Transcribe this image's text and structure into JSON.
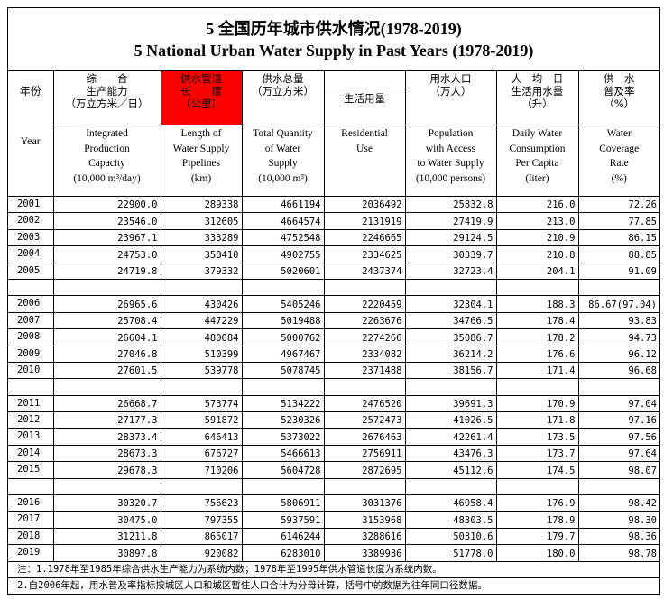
{
  "title": {
    "cn": "5 全国历年城市供水情况(1978-2019)",
    "en": "5 National Urban Water Supply in Past Years (1978-2019)"
  },
  "header": {
    "year_cn": "年份",
    "year_en": "Year",
    "columns": [
      {
        "cn": [
          "综　　合",
          "生产能力",
          "（万立方米／日）"
        ],
        "en": [
          "Integrated",
          "Production",
          "Capacity",
          "(10,000 m³/day)"
        ]
      },
      {
        "cn": [
          "供水管道",
          "长　　度",
          "（公里）"
        ],
        "en": [
          "Length of",
          "Water Supply",
          "Pipelines",
          "(km)"
        ],
        "highlight": "#ff0000"
      },
      {
        "cn": [
          "供水总量",
          "（万立方米）"
        ],
        "en": [
          "Total Quantity",
          "of Water",
          "Supply",
          "(10,000 m³)"
        ]
      },
      {
        "cn": [
          "",
          "生活用量"
        ],
        "en": [
          "Residential",
          "Use"
        ]
      },
      {
        "cn": [
          "用水人口",
          "（万人）"
        ],
        "en": [
          "Population",
          "with Access",
          "to Water Supply",
          "(10,000 persons)"
        ]
      },
      {
        "cn": [
          "人　均　日",
          "生活用水量",
          "（升）"
        ],
        "en": [
          "Daily Water",
          "Consumption",
          "Per Capita",
          "(liter)"
        ]
      },
      {
        "cn": [
          "供　水",
          "普及率",
          "（%）"
        ],
        "en": [
          "Water",
          "Coverage",
          "Rate",
          "(%)"
        ]
      }
    ]
  },
  "rows": [
    [
      "2001",
      "22900.0",
      "289338",
      "4661194",
      "2036492",
      "25832.8",
      "216.0",
      "72.26"
    ],
    [
      "2002",
      "23546.0",
      "312605",
      "4664574",
      "2131919",
      "27419.9",
      "213.0",
      "77.85"
    ],
    [
      "2003",
      "23967.1",
      "333289",
      "4752548",
      "2246665",
      "29124.5",
      "210.9",
      "86.15"
    ],
    [
      "2004",
      "24753.0",
      "358410",
      "4902755",
      "2334625",
      "30339.7",
      "210.8",
      "88.85"
    ],
    [
      "2005",
      "24719.8",
      "379332",
      "5020601",
      "2437374",
      "32723.4",
      "204.1",
      "91.09"
    ],
    null,
    [
      "2006",
      "26965.6",
      "430426",
      "5405246",
      "2220459",
      "32304.1",
      "188.3",
      "86.67(97.04)"
    ],
    [
      "2007",
      "25708.4",
      "447229",
      "5019488",
      "2263676",
      "34766.5",
      "178.4",
      "93.83"
    ],
    [
      "2008",
      "26604.1",
      "480084",
      "5000762",
      "2274266",
      "35086.7",
      "178.2",
      "94.73"
    ],
    [
      "2009",
      "27046.8",
      "510399",
      "4967467",
      "2334082",
      "36214.2",
      "176.6",
      "96.12"
    ],
    [
      "2010",
      "27601.5",
      "539778",
      "5078745",
      "2371488",
      "38156.7",
      "171.4",
      "96.68"
    ],
    null,
    [
      "2011",
      "26668.7",
      "573774",
      "5134222",
      "2476520",
      "39691.3",
      "170.9",
      "97.04"
    ],
    [
      "2012",
      "27177.3",
      "591872",
      "5230326",
      "2572473",
      "41026.5",
      "171.8",
      "97.16"
    ],
    [
      "2013",
      "28373.4",
      "646413",
      "5373022",
      "2676463",
      "42261.4",
      "173.5",
      "97.56"
    ],
    [
      "2014",
      "28673.3",
      "676727",
      "5466613",
      "2756911",
      "43476.3",
      "173.7",
      "97.64"
    ],
    [
      "2015",
      "29678.3",
      "710206",
      "5604728",
      "2872695",
      "45112.6",
      "174.5",
      "98.07"
    ],
    null,
    [
      "2016",
      "30320.7",
      "756623",
      "5806911",
      "3031376",
      "46958.4",
      "176.9",
      "98.42"
    ],
    [
      "2017",
      "30475.0",
      "797355",
      "5937591",
      "3153968",
      "48303.5",
      "178.9",
      "98.30"
    ],
    [
      "2018",
      "31211.8",
      "865017",
      "6146244",
      "3288616",
      "50310.6",
      "179.7",
      "98.36"
    ],
    [
      "2019",
      "30897.8",
      "920082",
      "6283010",
      "3389936",
      "51778.0",
      "180.0",
      "98.78"
    ]
  ],
  "notes": [
    "注：1.1978年至1985年综合供水生产能力为系统内数；1978年至1995年供水管道长度为系统内数。",
    "2.自2006年起，用水普及率指标按城区人口和城区暂住人口合计为分母计算，括号中的数据为往年同口径数据。"
  ]
}
